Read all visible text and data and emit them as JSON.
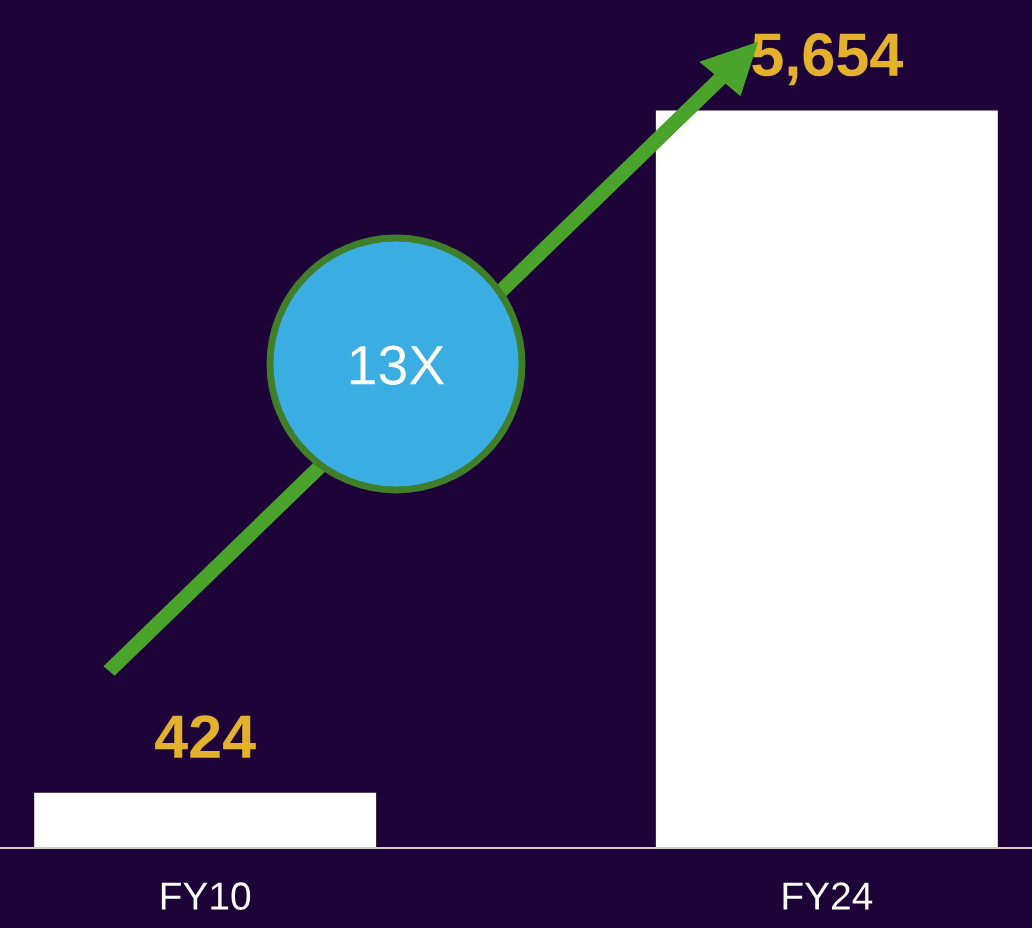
{
  "chart_data": {
    "type": "bar",
    "categories": [
      "FY10",
      "FY24"
    ],
    "values": [
      424,
      5654
    ],
    "value_labels": [
      "424",
      "5,654"
    ],
    "color": "#ffffff",
    "annotations": [
      "13X"
    ],
    "grid": false,
    "legend": false
  }
}
